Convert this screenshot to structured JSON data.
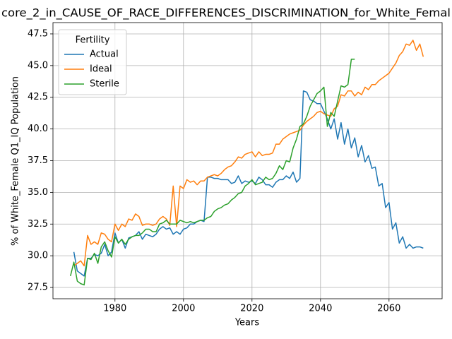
{
  "chart_data": {
    "type": "line",
    "title": "core_2_in_CAUSE_OF_RACE_DIFFERENCES_DISCRIMINATION_for_White_Femal",
    "xlabel": "Years",
    "ylabel": "% of White_Female Q1_IQ Population",
    "legend_title": "Fertility",
    "legend": "upper left",
    "grid": true,
    "xlim": [
      1961.9,
      2075.5
    ],
    "ylim": [
      26.61,
      48.39
    ],
    "xticks": [
      1980,
      2000,
      2020,
      2040,
      2060
    ],
    "yticks": [
      27.5,
      {
        "value": 30,
        "label": "30.0"
      },
      32.5,
      {
        "value": 35,
        "label": "35.0"
      },
      37.5,
      {
        "value": 40,
        "label": "40.0"
      },
      42.5,
      {
        "value": 45,
        "label": "45.0"
      },
      47.5
    ],
    "x": [
      1967,
      1968,
      1969,
      1970,
      1971,
      1972,
      1973,
      1974,
      1975,
      1976,
      1977,
      1978,
      1979,
      1980,
      1981,
      1982,
      1983,
      1984,
      1985,
      1986,
      1987,
      1988,
      1989,
      1990,
      1991,
      1992,
      1993,
      1994,
      1995,
      1996,
      1997,
      1998,
      1999,
      2000,
      2001,
      2002,
      2003,
      2004,
      2005,
      2006,
      2007,
      2008,
      2009,
      2010,
      2011,
      2012,
      2013,
      2014,
      2015,
      2016,
      2017,
      2018,
      2019,
      2020,
      2021,
      2022,
      2023,
      2024,
      2025,
      2026,
      2027,
      2028,
      2029,
      2030,
      2031,
      2032,
      2033,
      2034,
      2035,
      2036,
      2037,
      2038,
      2039,
      2040,
      2041,
      2042,
      2043,
      2044,
      2045,
      2046,
      2047,
      2048,
      2049,
      2050,
      2051,
      2052,
      2053,
      2054,
      2055,
      2056,
      2057,
      2058,
      2059,
      2060,
      2061,
      2062,
      2063,
      2064,
      2065,
      2066,
      2067,
      2068,
      2069,
      2070
    ],
    "series": [
      {
        "name": "Actual",
        "color": "#1f77b4",
        "values": [
          null,
          30.3,
          28.8,
          28.6,
          28.4,
          29.8,
          29.8,
          30.1,
          30.0,
          30.2,
          30.9,
          30.0,
          30.3,
          31.8,
          31.0,
          31.3,
          30.6,
          31.4,
          31.5,
          31.6,
          31.9,
          31.3,
          31.7,
          31.6,
          31.5,
          31.7,
          32.1,
          32.3,
          32.1,
          32.2,
          31.7,
          31.9,
          31.7,
          32.1,
          32.2,
          32.5,
          32.5,
          32.7,
          32.8,
          32.7,
          36.2,
          36.2,
          36.1,
          36.1,
          36.0,
          36.0,
          36.0,
          35.7,
          35.8,
          36.3,
          35.7,
          35.9,
          35.8,
          35.9,
          35.7,
          36.2,
          36.0,
          35.6,
          35.6,
          35.4,
          35.8,
          36.0,
          36.0,
          36.3,
          36.1,
          36.6,
          35.8,
          36.1,
          43.0,
          42.9,
          42.3,
          42.2,
          42.0,
          42.0,
          41.4,
          40.8,
          40.0,
          40.8,
          39.2,
          40.5,
          38.8,
          40.0,
          38.5,
          39.3,
          37.8,
          38.7,
          37.4,
          37.9,
          36.9,
          37.0,
          35.5,
          35.7,
          33.8,
          34.2,
          32.1,
          32.6,
          31.0,
          31.5,
          30.6,
          30.9,
          30.6,
          30.7,
          30.7,
          30.6
        ]
      },
      {
        "name": "Ideal",
        "color": "#ff7f0e",
        "values": [
          null,
          29.2,
          29.4,
          29.6,
          29.2,
          31.6,
          30.9,
          31.1,
          30.9,
          31.8,
          31.7,
          31.3,
          31.1,
          32.5,
          32.0,
          32.5,
          32.3,
          32.9,
          32.8,
          33.3,
          33.1,
          32.4,
          32.5,
          32.5,
          32.4,
          32.5,
          32.9,
          33.1,
          32.9,
          32.4,
          35.5,
          32.3,
          35.5,
          35.3,
          36.0,
          35.8,
          35.9,
          35.6,
          35.9,
          35.9,
          36.2,
          36.3,
          36.4,
          36.3,
          36.5,
          36.8,
          37.0,
          37.1,
          37.4,
          37.8,
          37.7,
          38.0,
          38.1,
          38.2,
          37.8,
          38.2,
          37.9,
          38.0,
          38.0,
          38.1,
          38.8,
          38.8,
          39.2,
          39.4,
          39.6,
          39.7,
          39.8,
          39.9,
          40.3,
          40.6,
          40.8,
          41.0,
          41.3,
          41.4,
          41.2,
          41.1,
          41.0,
          41.6,
          41.8,
          42.7,
          42.6,
          43.0,
          43.0,
          42.6,
          42.9,
          42.7,
          43.3,
          43.1,
          43.5,
          43.5,
          43.8,
          44.0,
          44.2,
          44.4,
          44.8,
          45.2,
          45.8,
          46.1,
          46.7,
          46.6,
          47.0,
          46.2,
          46.7,
          45.7
        ]
      },
      {
        "name": "Sterile",
        "color": "#2ca02c",
        "values": [
          28.4,
          29.5,
          28.0,
          27.8,
          27.7,
          29.8,
          29.7,
          30.2,
          29.4,
          30.7,
          31.1,
          30.4,
          29.9,
          31.5,
          31.0,
          31.3,
          30.9,
          31.3,
          31.5,
          31.6,
          31.6,
          31.8,
          32.1,
          32.1,
          31.9,
          31.9,
          32.5,
          32.6,
          32.8,
          32.5,
          32.5,
          32.5,
          32.8,
          32.7,
          32.6,
          32.7,
          32.6,
          32.7,
          32.8,
          32.8,
          33.0,
          33.1,
          33.5,
          33.7,
          33.8,
          34.0,
          34.1,
          34.4,
          34.6,
          34.9,
          35.0,
          35.5,
          35.7,
          36.0,
          35.6,
          35.7,
          35.8,
          36.2,
          36.0,
          36.1,
          36.5,
          37.1,
          36.8,
          37.5,
          37.4,
          38.5,
          39.2,
          40.2,
          40.4,
          41.0,
          41.8,
          42.3,
          42.8,
          43.0,
          43.3,
          40.2,
          41.3,
          41.0,
          42.2,
          43.4,
          43.3,
          43.5,
          45.5,
          45.5,
          null,
          null,
          null,
          null,
          null,
          null,
          null,
          null,
          null,
          null,
          null,
          null,
          null,
          null,
          null,
          null,
          null,
          null,
          null,
          null
        ]
      }
    ]
  }
}
